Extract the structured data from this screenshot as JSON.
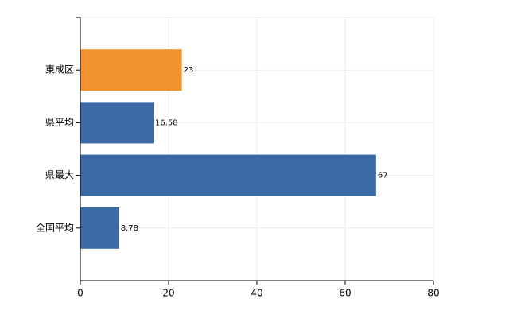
{
  "chart_data": {
    "type": "bar",
    "orientation": "horizontal",
    "categories": [
      "東成区",
      "県平均",
      "県最大",
      "全国平均"
    ],
    "values": [
      23,
      16.58,
      67,
      8.78
    ],
    "colors": [
      "#f0922e",
      "#3a69a6",
      "#3a69a6",
      "#3a69a6"
    ],
    "xlim": [
      0,
      80
    ],
    "xticks": [
      0,
      20,
      40,
      60,
      80
    ],
    "grid": true
  }
}
